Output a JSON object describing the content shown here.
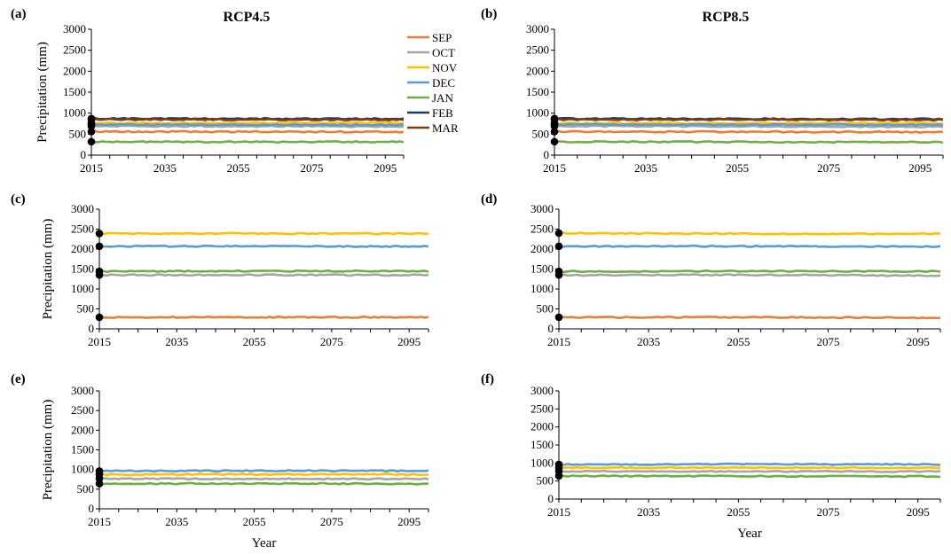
{
  "figure": {
    "col_titles": [
      "RCP4.5",
      "RCP8.5"
    ],
    "legend": [
      {
        "name": "SEP",
        "color": "#ED7D31"
      },
      {
        "name": "OCT",
        "color": "#A5A5A5"
      },
      {
        "name": "NOV",
        "color": "#FFC000"
      },
      {
        "name": "DEC",
        "color": "#5B9BD5"
      },
      {
        "name": "JAN",
        "color": "#70AD47"
      },
      {
        "name": "FEB",
        "color": "#1F3864"
      },
      {
        "name": "MAR",
        "color": "#843C0C"
      }
    ]
  },
  "chart_data": [
    {
      "panel": "(a)",
      "type": "line",
      "title": "RCP4.5",
      "xlabel": "",
      "ylabel": "Precipitation (mm)",
      "xlim": [
        2015,
        2100
      ],
      "ylim": [
        0,
        3000
      ],
      "xticks": [
        2015,
        2035,
        2055,
        2075,
        2095
      ],
      "yticks": [
        0,
        500,
        1000,
        1500,
        2000,
        2500,
        3000
      ],
      "series": [
        {
          "name": "SEP",
          "color": "#ED7D31",
          "start": 560,
          "mean": 555,
          "end": 548
        },
        {
          "name": "OCT",
          "color": "#A5A5A5",
          "start": 690,
          "mean": 685,
          "end": 680
        },
        {
          "name": "NOV",
          "color": "#FFC000",
          "start": 760,
          "mean": 770,
          "end": 775
        },
        {
          "name": "DEC",
          "color": "#5B9BD5",
          "start": 730,
          "mean": 720,
          "end": 715
        },
        {
          "name": "JAN",
          "color": "#70AD47",
          "start": 320,
          "mean": 315,
          "end": 320
        },
        {
          "name": "FEB",
          "color": "#1F3864",
          "start": 870,
          "mean": 865,
          "end": 860
        },
        {
          "name": "MAR",
          "color": "#843C0C",
          "start": 850,
          "mean": 845,
          "end": 840
        }
      ]
    },
    {
      "panel": "(b)",
      "type": "line",
      "title": "RCP8.5",
      "xlabel": "",
      "ylabel": "",
      "xlim": [
        2015,
        2100
      ],
      "ylim": [
        0,
        3000
      ],
      "xticks": [
        2015,
        2035,
        2055,
        2075,
        2095
      ],
      "yticks": [
        0,
        500,
        1000,
        1500,
        2000,
        2500,
        3000
      ],
      "series": [
        {
          "name": "SEP",
          "color": "#ED7D31",
          "start": 560,
          "mean": 550,
          "end": 540
        },
        {
          "name": "OCT",
          "color": "#A5A5A5",
          "start": 690,
          "mean": 680,
          "end": 670
        },
        {
          "name": "NOV",
          "color": "#FFC000",
          "start": 760,
          "mean": 760,
          "end": 760
        },
        {
          "name": "DEC",
          "color": "#5B9BD5",
          "start": 730,
          "mean": 720,
          "end": 710
        },
        {
          "name": "JAN",
          "color": "#70AD47",
          "start": 320,
          "mean": 310,
          "end": 300
        },
        {
          "name": "FEB",
          "color": "#1F3864",
          "start": 870,
          "mean": 860,
          "end": 850
        },
        {
          "name": "MAR",
          "color": "#843C0C",
          "start": 850,
          "mean": 840,
          "end": 830
        }
      ]
    },
    {
      "panel": "(c)",
      "type": "line",
      "title": "",
      "xlabel": "",
      "ylabel": "Precipitation (mm)",
      "xlim": [
        2015,
        2100
      ],
      "ylim": [
        0,
        3000
      ],
      "xticks": [
        2015,
        2035,
        2055,
        2075,
        2095
      ],
      "yticks": [
        0,
        500,
        1000,
        1500,
        2000,
        2500,
        3000
      ],
      "series": [
        {
          "name": "SEP",
          "color": "#ED7D31",
          "start": 290,
          "mean": 290,
          "end": 290
        },
        {
          "name": "OCT",
          "color": "#A5A5A5",
          "start": 1350,
          "mean": 1350,
          "end": 1350
        },
        {
          "name": "NOV",
          "color": "#FFC000",
          "start": 2390,
          "mean": 2390,
          "end": 2390
        },
        {
          "name": "DEC",
          "color": "#5B9BD5",
          "start": 2070,
          "mean": 2070,
          "end": 2060
        },
        {
          "name": "JAN",
          "color": "#70AD47",
          "start": 1440,
          "mean": 1450,
          "end": 1450
        }
      ]
    },
    {
      "panel": "(d)",
      "type": "line",
      "title": "",
      "xlabel": "",
      "ylabel": "",
      "xlim": [
        2015,
        2100
      ],
      "ylim": [
        0,
        3000
      ],
      "xticks": [
        2015,
        2035,
        2055,
        2075,
        2095
      ],
      "yticks": [
        0,
        500,
        1000,
        1500,
        2000,
        2500,
        3000
      ],
      "series": [
        {
          "name": "SEP",
          "color": "#ED7D31",
          "start": 290,
          "mean": 285,
          "end": 270
        },
        {
          "name": "OCT",
          "color": "#A5A5A5",
          "start": 1350,
          "mean": 1345,
          "end": 1320
        },
        {
          "name": "NOV",
          "color": "#FFC000",
          "start": 2400,
          "mean": 2380,
          "end": 2370
        },
        {
          "name": "DEC",
          "color": "#5B9BD5",
          "start": 2070,
          "mean": 2070,
          "end": 2060
        },
        {
          "name": "JAN",
          "color": "#70AD47",
          "start": 1440,
          "mean": 1445,
          "end": 1440
        }
      ]
    },
    {
      "panel": "(e)",
      "type": "line",
      "title": "",
      "xlabel": "Year",
      "ylabel": "Precipitation (mm)",
      "xlim": [
        2015,
        2100
      ],
      "ylim": [
        0,
        3000
      ],
      "xticks": [
        2015,
        2035,
        2055,
        2075,
        2095
      ],
      "yticks": [
        0,
        500,
        1000,
        1500,
        2000,
        2500,
        3000
      ],
      "series": [
        {
          "name": "OCT",
          "color": "#A5A5A5",
          "start": 770,
          "mean": 760,
          "end": 760
        },
        {
          "name": "NOV",
          "color": "#FFC000",
          "start": 870,
          "mean": 880,
          "end": 880
        },
        {
          "name": "DEC",
          "color": "#5B9BD5",
          "start": 960,
          "mean": 970,
          "end": 960
        },
        {
          "name": "JAN",
          "color": "#70AD47",
          "start": 640,
          "mean": 640,
          "end": 630
        }
      ]
    },
    {
      "panel": "(f)",
      "type": "line",
      "title": "",
      "xlabel": "Year",
      "ylabel": "",
      "xlim": [
        2015,
        2100
      ],
      "ylim": [
        0,
        3000
      ],
      "xticks": [
        2015,
        2035,
        2055,
        2075,
        2095
      ],
      "yticks": [
        0,
        500,
        1000,
        1500,
        2000,
        2500,
        3000
      ],
      "series": [
        {
          "name": "OCT",
          "color": "#A5A5A5",
          "start": 770,
          "mean": 765,
          "end": 760
        },
        {
          "name": "NOV",
          "color": "#FFC000",
          "start": 870,
          "mean": 870,
          "end": 870
        },
        {
          "name": "DEC",
          "color": "#5B9BD5",
          "start": 960,
          "mean": 965,
          "end": 960
        },
        {
          "name": "JAN",
          "color": "#70AD47",
          "start": 640,
          "mean": 630,
          "end": 620
        }
      ]
    }
  ]
}
